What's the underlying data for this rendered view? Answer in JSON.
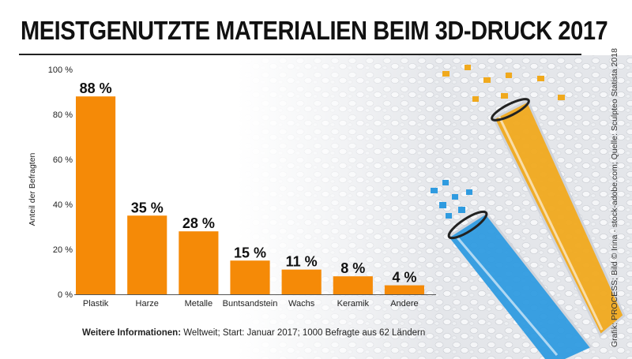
{
  "chart_data": {
    "type": "bar",
    "title": "MEISTGENUTZTE MATERIALIEN BEIM 3D-DRUCK 2017",
    "ylabel": "Anteil der Befragten",
    "xlabel": "",
    "ylim": [
      0,
      100
    ],
    "yticks": [
      0,
      20,
      40,
      60,
      80,
      100
    ],
    "ytick_labels": [
      "0 %",
      "20 %",
      "40 %",
      "60 %",
      "80 %",
      "100 %"
    ],
    "categories": [
      "Plastik",
      "Harze",
      "Metalle",
      "Buntsandstein",
      "Wachs",
      "Keramik",
      "Andere"
    ],
    "values": [
      88,
      35,
      28,
      15,
      11,
      8,
      4
    ],
    "value_labels": [
      "88 %",
      "35 %",
      "28 %",
      "15 %",
      "11 %",
      "8 %",
      "4 %"
    ],
    "bar_color": "#F58A07",
    "grid": false
  },
  "footnote": {
    "label": "Weitere Informationen:",
    "text": " Weltweit; Start: Januar 2017; 1000 Befragte aus 62 Ländern"
  },
  "credit": "Grafik: PROCESS; Bild © Irina - stock-adobe.com; Quelle: Sculpteo Statista 2018"
}
